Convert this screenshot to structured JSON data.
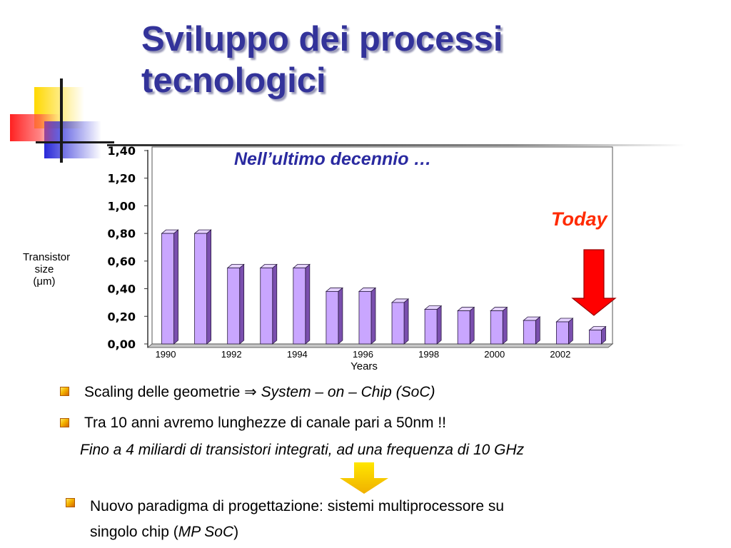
{
  "slide": {
    "title_line1": "Sviluppo dei processi",
    "title_line2": "tecnologici"
  },
  "colors": {
    "title": "#33339a",
    "bar_face": "#c9a6ff",
    "bar_side": "#7a4fae",
    "bar_top": "#e4d2ff",
    "arrow_red": "#ff0000",
    "arrow_yellow": "#ffd400",
    "today_text": "#ff2a00",
    "subtitle_text": "#2a2aa0"
  },
  "chart_data": {
    "type": "bar",
    "title": "Nell’ultimo decennio …",
    "xlabel": "Years",
    "ylabel_line1": "Transistor",
    "ylabel_line2": "size (μm)",
    "ylim": [
      0,
      1.4
    ],
    "yticks": [
      "0,00",
      "0,20",
      "0,40",
      "0,60",
      "0,80",
      "1,00",
      "1,20",
      "1,40"
    ],
    "xticks": [
      "1990",
      "1992",
      "1994",
      "1996",
      "1998",
      "2000",
      "2002"
    ],
    "values": [
      0.8,
      0.8,
      0.55,
      0.55,
      0.55,
      0.38,
      0.38,
      0.3,
      0.25,
      0.24,
      0.24,
      0.17,
      0.16,
      0.1
    ],
    "grid": false,
    "annotation": {
      "text": "Today",
      "target_bar_index": 13
    }
  },
  "bullets": [
    {
      "plain": "Scaling delle geometrie ⇒ ",
      "italic": "System – on – Chip (SoC)"
    },
    {
      "plain": "Tra 10 anni avremo lunghezze di canale pari a 50nm !!",
      "sub_italic": "Fino a 4 miliardi di transistori integrati, ad una frequenza di 10 GHz"
    },
    {
      "line1": "Nuovo paradigma di progettazione: sistemi multiprocessore su",
      "line2_prefix": "singolo chip (",
      "line2_italic": "MP SoC",
      "line2_suffix": ")"
    }
  ]
}
